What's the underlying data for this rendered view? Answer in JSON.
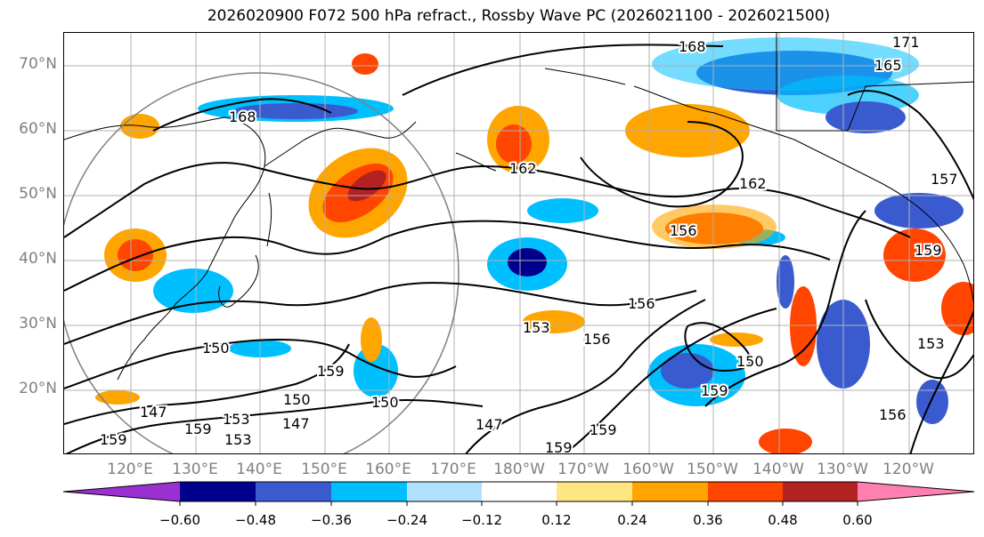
{
  "title": "2026020900 F072 500 hPa refract., Rossby Wave PC (2026021100 - 2026021500)",
  "lat_labels": [
    "70°N",
    "60°N",
    "50°N",
    "40°N",
    "30°N",
    "20°N"
  ],
  "lon_labels": [
    "120°E",
    "130°E",
    "140°E",
    "150°E",
    "160°E",
    "170°E",
    "180°W",
    "170°W",
    "160°W",
    "150°W",
    "140°W",
    "130°W",
    "120°W"
  ],
  "colorbar": {
    "ticks": [
      "−0.60",
      "−0.48",
      "−0.36",
      "−0.24",
      "−0.12",
      "0.12",
      "0.24",
      "0.36",
      "0.48",
      "0.60"
    ],
    "colors": [
      "#9b30d0",
      "#00008b",
      "#3a5bd0",
      "#00bfff",
      "#b0e2ff",
      "#ffffff",
      "#ffe680",
      "#ffa500",
      "#ff4500",
      "#b22222",
      "#ff80b0"
    ]
  },
  "contour_labels": [
    "168",
    "171",
    "165",
    "168",
    "162",
    "162",
    "157",
    "156",
    "159",
    "156",
    "153",
    "156",
    "150",
    "150",
    "159",
    "150",
    "147",
    "147",
    "159",
    "153",
    "159",
    "159",
    "153",
    "156",
    "159",
    "147",
    "159",
    "150",
    "153"
  ]
}
